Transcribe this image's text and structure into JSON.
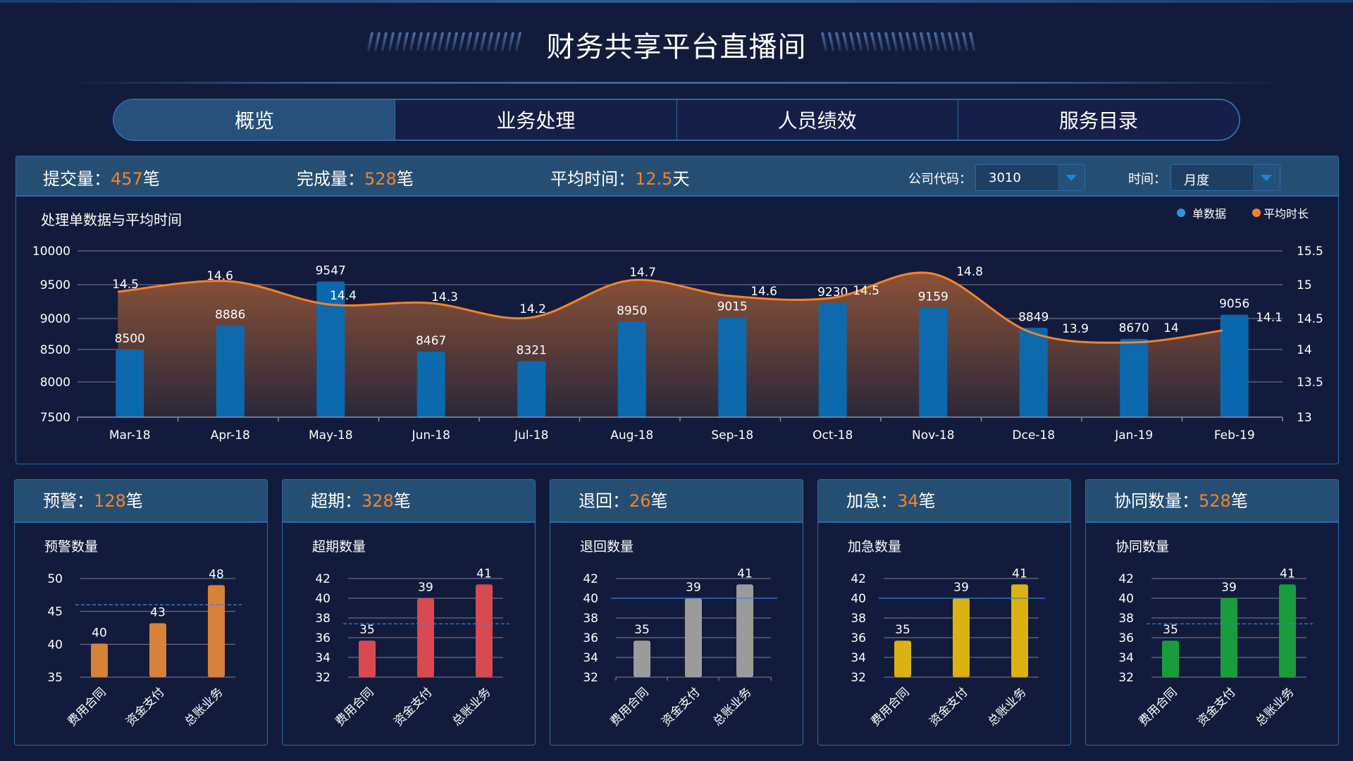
{
  "header": {
    "title": "财务共享平台直播间"
  },
  "tabs": [
    {
      "label": "概览",
      "active": true
    },
    {
      "label": "业务处理",
      "active": false
    },
    {
      "label": "人员绩效",
      "active": false
    },
    {
      "label": "服务目录",
      "active": false
    }
  ],
  "stats": {
    "submitted": {
      "label": "提交量：",
      "value": "457",
      "unit": "笔"
    },
    "completed": {
      "label": "完成量：",
      "value": "528",
      "unit": "笔"
    },
    "avg_time": {
      "label": "平均时间：",
      "value": "12.5",
      "unit": "天"
    }
  },
  "filters": {
    "company_code": {
      "label": "公司代码：",
      "value": "3010",
      "icon": "chevron-down-icon"
    },
    "time": {
      "label": "时间：",
      "value": "月度",
      "icon": "chevron-down-icon"
    }
  },
  "colors": {
    "accent_orange": "#f5832a",
    "bar_blue": "#0a6db3",
    "legend_blue": "#2e94da",
    "panel_head": "#264e73",
    "border": "#2d6aa8",
    "bg": "#121b3b",
    "warning": "#d7813a",
    "overdue": "#d84a52",
    "returned": "#9b9b9b",
    "urgent": "#dcb113",
    "collab": "#199c3c"
  },
  "chart_data": [
    {
      "type": "bar+line",
      "title": "处理单数据与平均时间",
      "categories": [
        "Mar-18",
        "Apr-18",
        "May-18",
        "Jun-18",
        "Jul-18",
        "Aug-18",
        "Sep-18",
        "Oct-18",
        "Nov-18",
        "Dce-18",
        "Jan-19",
        "Feb-19"
      ],
      "series": [
        {
          "name": "单数据",
          "type": "bar",
          "axis": "left",
          "color": "#0a6db3",
          "values": [
            8500,
            8886,
            9547,
            8467,
            8321,
            8950,
            9015,
            9230,
            9159,
            8849,
            8670,
            9056
          ]
        },
        {
          "name": "平均时长",
          "type": "area-line",
          "axis": "right",
          "color": "#f5832a",
          "values": [
            14.5,
            14.6,
            14.4,
            14.3,
            14.2,
            14.7,
            14.6,
            14.5,
            14.8,
            13.9,
            14,
            14.1
          ]
        }
      ],
      "yleft_ticks": [
        7500,
        8000,
        8500,
        9000,
        9500,
        10000
      ],
      "yright_ticks": [
        13,
        13.5,
        14,
        14.5,
        15,
        15.5
      ],
      "ylim_left": [
        7500,
        10000
      ],
      "ylim_right": [
        13,
        15.5
      ],
      "legend": [
        "单数据",
        "平均时长"
      ],
      "legend_position": "top-right",
      "grid": true
    },
    {
      "type": "bar",
      "title": "预警数量",
      "categories": [
        "费用合同",
        "资金支付",
        "总账业务"
      ],
      "values": [
        40,
        43,
        48
      ],
      "yticks": [
        35,
        40,
        45,
        50
      ],
      "ylim": [
        35,
        50
      ],
      "reference_line": 46,
      "color": "#d7813a"
    },
    {
      "type": "bar",
      "title": "超期数量",
      "categories": [
        "费用合同",
        "资金支付",
        "总账业务"
      ],
      "values": [
        35,
        39,
        41
      ],
      "yticks": [
        32,
        34,
        36,
        38,
        40,
        42
      ],
      "ylim": [
        32,
        42
      ],
      "reference_line": 37.4,
      "color": "#d84a52"
    },
    {
      "type": "bar",
      "title": "退回数量",
      "categories": [
        "费用合同",
        "资金支付",
        "总账业务"
      ],
      "values": [
        35,
        39,
        41
      ],
      "yticks": [
        32,
        34,
        36,
        38,
        40,
        42
      ],
      "ylim": [
        32,
        42
      ],
      "reference_line": 40,
      "color": "#9b9b9b"
    },
    {
      "type": "bar",
      "title": "加急数量",
      "categories": [
        "费用合同",
        "资金支付",
        "总账业务"
      ],
      "values": [
        35,
        39,
        41
      ],
      "yticks": [
        32,
        34,
        36,
        38,
        40,
        42
      ],
      "ylim": [
        32,
        42
      ],
      "reference_line": 40,
      "color": "#dcb113"
    },
    {
      "type": "bar",
      "title": "协同数量",
      "categories": [
        "费用合同",
        "资金支付",
        "总账业务"
      ],
      "values": [
        35,
        39,
        41
      ],
      "yticks": [
        32,
        34,
        36,
        38,
        40,
        42
      ],
      "ylim": [
        32,
        42
      ],
      "reference_line": 37.4,
      "color": "#199c3c"
    }
  ],
  "cards": [
    {
      "label": "预警：",
      "value": "128",
      "unit": "笔",
      "subtitle": "预警数量"
    },
    {
      "label": "超期：",
      "value": "328",
      "unit": "笔",
      "subtitle": "超期数量"
    },
    {
      "label": "退回：",
      "value": "26",
      "unit": "笔",
      "subtitle": "退回数量"
    },
    {
      "label": "加急：",
      "value": "34",
      "unit": "笔",
      "subtitle": "加急数量"
    },
    {
      "label": "协同数量：",
      "value": "528",
      "unit": "笔",
      "subtitle": "协同数量"
    }
  ]
}
